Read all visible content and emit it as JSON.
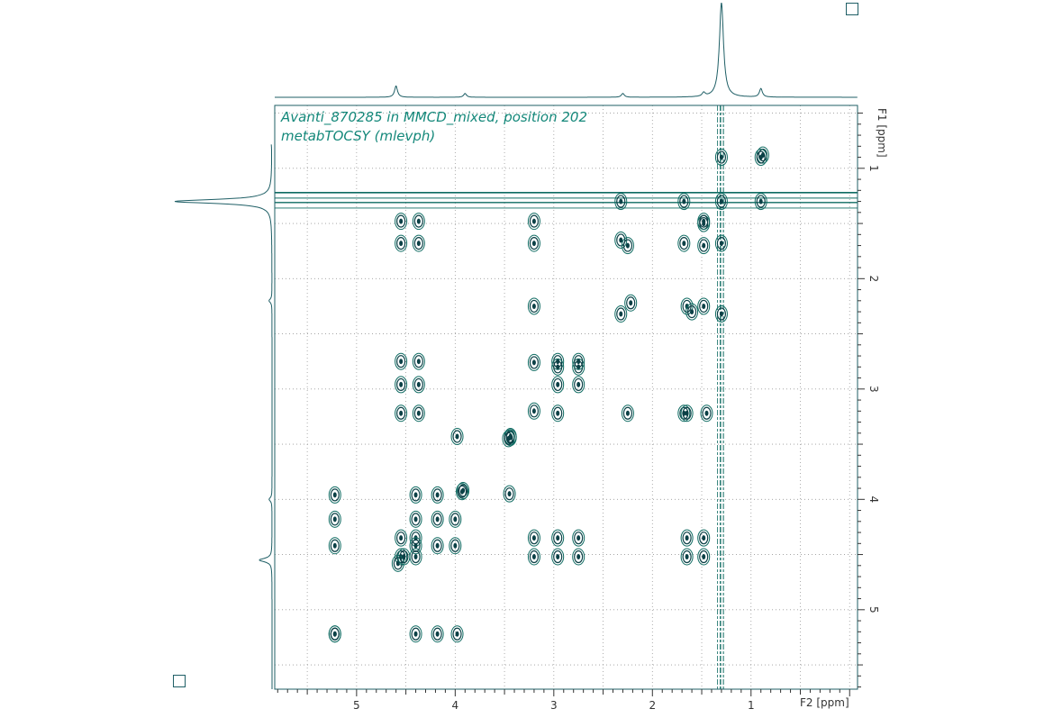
{
  "title": {
    "line1": "Avanti_870285 in MMCD_mixed, position 202",
    "line2": "metabTOCSY (mlevph)"
  },
  "colors": {
    "frame": "#1f5f66",
    "contour": "#0f6b62",
    "contour_dark": "#0b4046",
    "text": "#14887a",
    "grid": "#9a9a9a"
  },
  "chart_data": {
    "type": "contour",
    "xlabel": "F2 [ppm]",
    "ylabel": "F1 [ppm]",
    "xlim": [
      5.83,
      -0.08
    ],
    "ylim": [
      0.43,
      5.72
    ],
    "x_ticks": [
      "5",
      "4",
      "3",
      "2",
      "1"
    ],
    "y_ticks": [
      "1",
      "2",
      "3",
      "4",
      "5"
    ],
    "grid": true,
    "diagonal_peaks": [
      [
        5.22,
        5.22
      ],
      [
        4.58,
        4.58
      ],
      [
        4.52,
        4.52
      ],
      [
        3.92,
        3.92
      ],
      [
        3.93,
        3.93
      ],
      [
        3.44,
        3.44
      ],
      [
        3.46,
        3.45
      ],
      [
        3.2,
        3.2
      ],
      [
        2.96,
        2.96
      ],
      [
        2.75,
        2.75
      ],
      [
        2.32,
        2.32
      ],
      [
        2.22,
        2.22
      ],
      [
        1.48,
        1.48
      ],
      [
        1.3,
        1.3
      ],
      [
        0.9,
        0.9
      ]
    ],
    "cross_peaks": [
      [
        4.55,
        1.48
      ],
      [
        4.37,
        1.48
      ],
      [
        4.55,
        1.68
      ],
      [
        4.37,
        1.68
      ],
      [
        3.2,
        1.48
      ],
      [
        3.2,
        1.68
      ],
      [
        3.2,
        2.25
      ],
      [
        2.32,
        1.3
      ],
      [
        2.32,
        1.65
      ],
      [
        2.25,
        1.7
      ],
      [
        1.68,
        1.3
      ],
      [
        1.68,
        1.68
      ],
      [
        1.65,
        2.25
      ],
      [
        1.6,
        2.3
      ],
      [
        1.48,
        1.5
      ],
      [
        1.48,
        1.7
      ],
      [
        1.48,
        2.25
      ],
      [
        1.45,
        3.22
      ],
      [
        1.3,
        0.9
      ],
      [
        1.3,
        1.68
      ],
      [
        1.3,
        2.32
      ],
      [
        0.9,
        1.3
      ],
      [
        0.88,
        0.88
      ],
      [
        4.55,
        2.75
      ],
      [
        4.37,
        2.75
      ],
      [
        4.55,
        2.96
      ],
      [
        4.37,
        2.96
      ],
      [
        4.55,
        3.22
      ],
      [
        4.37,
        3.22
      ],
      [
        3.2,
        2.76
      ],
      [
        2.96,
        2.75
      ],
      [
        2.75,
        2.96
      ],
      [
        2.96,
        2.8
      ],
      [
        2.75,
        2.8
      ],
      [
        2.96,
        3.22
      ],
      [
        2.25,
        3.22
      ],
      [
        1.68,
        3.22
      ],
      [
        1.65,
        3.22
      ],
      [
        3.98,
        3.43
      ],
      [
        3.44,
        3.43
      ],
      [
        3.45,
        3.95
      ],
      [
        5.22,
        3.96
      ],
      [
        5.22,
        4.18
      ],
      [
        5.22,
        4.42
      ],
      [
        4.4,
        3.96
      ],
      [
        4.18,
        3.96
      ],
      [
        4.4,
        4.18
      ],
      [
        4.18,
        4.18
      ],
      [
        4.0,
        4.18
      ],
      [
        4.55,
        4.35
      ],
      [
        4.4,
        4.35
      ],
      [
        4.4,
        4.42
      ],
      [
        4.18,
        4.42
      ],
      [
        4.0,
        4.42
      ],
      [
        4.55,
        4.52
      ],
      [
        4.4,
        4.52
      ],
      [
        3.2,
        4.35
      ],
      [
        2.96,
        4.35
      ],
      [
        2.75,
        4.35
      ],
      [
        3.2,
        4.52
      ],
      [
        2.96,
        4.52
      ],
      [
        2.75,
        4.52
      ],
      [
        1.65,
        4.35
      ],
      [
        1.48,
        4.35
      ],
      [
        1.65,
        4.52
      ],
      [
        1.48,
        4.52
      ],
      [
        5.22,
        5.22
      ],
      [
        4.4,
        5.22
      ],
      [
        4.18,
        5.22
      ],
      [
        3.98,
        5.22
      ]
    ],
    "projection_f2_peaks": [
      [
        4.6,
        0.12
      ],
      [
        3.9,
        0.04
      ],
      [
        2.3,
        0.04
      ],
      [
        1.48,
        0.04
      ],
      [
        1.3,
        1.0
      ],
      [
        0.9,
        0.09
      ]
    ],
    "projection_f1_peaks": [
      [
        0.7,
        0.12
      ],
      [
        1.3,
        1.0
      ],
      [
        2.2,
        0.03
      ],
      [
        4.55,
        0.13
      ],
      [
        4.0,
        0.03
      ]
    ]
  }
}
